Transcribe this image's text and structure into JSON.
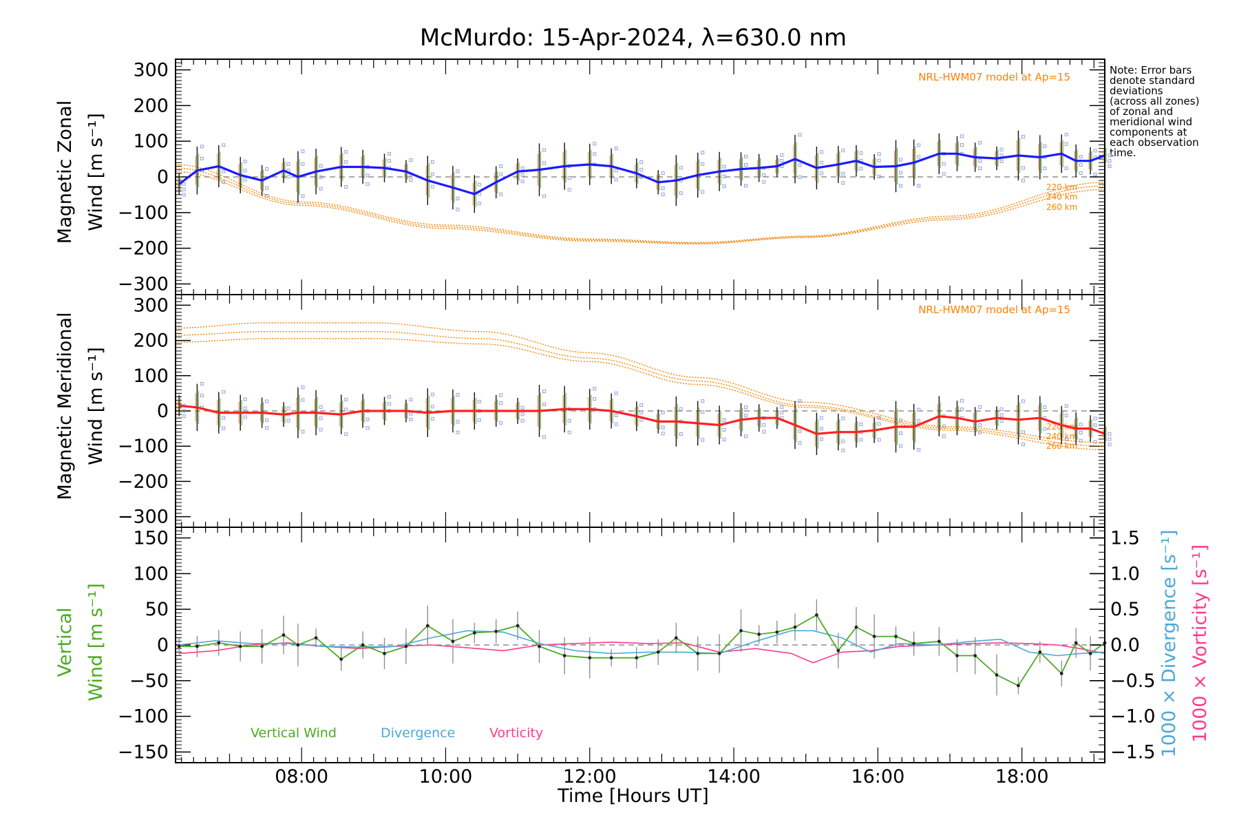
{
  "title": "McMurdo: 15-Apr-2024, λ=630.0 nm",
  "note": [
    "Note: Error bars",
    "denote standard",
    "deviations",
    "(across all zones)",
    "of zonal and",
    "meridional wind",
    "components at",
    "each observation",
    "time."
  ],
  "x_axis": {
    "label": "Time [Hours UT]",
    "range_hours": [
      6.25,
      19.15
    ],
    "ticks": [
      8,
      10,
      12,
      14,
      16,
      18
    ],
    "tick_labels": [
      "08:00",
      "10:00",
      "12:00",
      "14:00",
      "16:00",
      "18:00"
    ]
  },
  "colors": {
    "zonal": "#1a1aff",
    "meridional": "#ff2020",
    "model": "#ff8000",
    "vertical": "#4daa20",
    "divergence": "#4aa8d8",
    "vorticity": "#ff3a8a",
    "scatter": "#9a9ae0"
  },
  "chart_data": [
    {
      "type": "line",
      "panel": "zonal",
      "ylabel": [
        "Magnetic Zonal",
        "Wind [m s⁻¹]"
      ],
      "ylim": [
        -330,
        330
      ],
      "yticks": [
        300,
        200,
        100,
        0,
        -100,
        -200,
        -300
      ],
      "ytick_labels": [
        "300",
        "200",
        "100",
        "0",
        "−100",
        "−200",
        "−300"
      ],
      "model_label": "NRL-HWM07 model at Ap=15",
      "model_heights": [
        "220 km",
        "240 km",
        "260 km"
      ],
      "series": [
        {
          "x": [
            6.3,
            6.55,
            6.85,
            7.15,
            7.45,
            7.75,
            7.95,
            8.2,
            8.55,
            8.85,
            9.15,
            9.45,
            9.75,
            10.1,
            10.4,
            10.7,
            11.0,
            11.3,
            11.65,
            12.0,
            12.3,
            12.65,
            12.95,
            13.2,
            13.5,
            13.8,
            14.1,
            14.35,
            14.6,
            14.85,
            15.15,
            15.45,
            15.7,
            15.95,
            16.25,
            16.5,
            16.85,
            17.1,
            17.35,
            17.65,
            17.95,
            18.25,
            18.55,
            18.75,
            18.95,
            19.15
          ],
          "y": [
            -20,
            18,
            30,
            5,
            -10,
            18,
            0,
            15,
            28,
            28,
            25,
            15,
            -10,
            -30,
            -48,
            -15,
            15,
            20,
            30,
            35,
            30,
            10,
            -15,
            -10,
            5,
            15,
            22,
            25,
            30,
            50,
            25,
            35,
            45,
            28,
            30,
            40,
            65,
            65,
            55,
            52,
            60,
            55,
            65,
            45,
            45,
            60
          ]
        }
      ],
      "model": [
        {
          "x": [
            6.25,
            8,
            10,
            12,
            13.5,
            15,
            17,
            19.15
          ],
          "y": [
            15,
            -80,
            -145,
            -180,
            -188,
            -170,
            -120,
            -35
          ]
        },
        {
          "x": [
            6.25,
            8,
            10,
            12,
            13.5,
            15,
            17,
            19.15
          ],
          "y": [
            25,
            -75,
            -140,
            -177,
            -186,
            -168,
            -115,
            -25
          ]
        },
        {
          "x": [
            6.25,
            8,
            10,
            12,
            13.5,
            15,
            17,
            19.15
          ],
          "y": [
            35,
            -70,
            -135,
            -174,
            -184,
            -166,
            -110,
            -15
          ]
        }
      ]
    },
    {
      "type": "line",
      "panel": "meridional",
      "ylabel": [
        "Magnetic Meridional",
        "Wind [m s⁻¹]"
      ],
      "ylim": [
        -330,
        330
      ],
      "yticks": [
        300,
        200,
        100,
        0,
        -100,
        -200,
        -300
      ],
      "ytick_labels": [
        "300",
        "200",
        "100",
        "0",
        "−100",
        "−200",
        "−300"
      ],
      "model_label": "NRL-HWM07 model at Ap=15",
      "model_heights": [
        "220 km",
        "240 km",
        "260 km"
      ],
      "series": [
        {
          "x": [
            6.3,
            6.55,
            6.85,
            7.15,
            7.45,
            7.75,
            7.95,
            8.2,
            8.55,
            8.85,
            9.15,
            9.45,
            9.75,
            10.1,
            10.4,
            10.7,
            11.0,
            11.3,
            11.65,
            12.0,
            12.3,
            12.65,
            12.95,
            13.2,
            13.5,
            13.8,
            14.1,
            14.35,
            14.6,
            14.85,
            15.15,
            15.45,
            15.7,
            15.95,
            16.25,
            16.5,
            16.85,
            17.1,
            17.35,
            17.65,
            17.95,
            18.25,
            18.55,
            18.75,
            18.95,
            19.15
          ],
          "y": [
            15,
            10,
            -5,
            -5,
            -5,
            -10,
            -5,
            -5,
            -10,
            0,
            0,
            0,
            -5,
            0,
            0,
            0,
            0,
            0,
            5,
            5,
            0,
            -15,
            -30,
            -30,
            -35,
            -40,
            -25,
            -20,
            -20,
            -40,
            -65,
            -60,
            -60,
            -55,
            -45,
            -45,
            -15,
            -20,
            -30,
            -20,
            -25,
            -20,
            -40,
            -50,
            -50,
            -65
          ]
        }
      ],
      "model": [
        {
          "x": [
            6.25,
            7.5,
            9,
            10.5,
            12,
            13.5,
            15,
            17,
            19.15
          ],
          "y": [
            195,
            205,
            205,
            190,
            140,
            75,
            10,
            -55,
            -110
          ]
        },
        {
          "x": [
            6.25,
            7.5,
            9,
            10.5,
            12,
            13.5,
            15,
            17,
            19.15
          ],
          "y": [
            215,
            225,
            225,
            205,
            150,
            85,
            15,
            -50,
            -100
          ]
        },
        {
          "x": [
            6.25,
            7.5,
            9,
            10.5,
            12,
            13.5,
            15,
            17,
            19.15
          ],
          "y": [
            235,
            250,
            250,
            225,
            165,
            95,
            25,
            -45,
            -90
          ]
        }
      ]
    },
    {
      "type": "line",
      "panel": "vertical",
      "ylabel": [
        "Vertical",
        "Wind [m s⁻¹]"
      ],
      "ylim": [
        -165,
        165
      ],
      "yticks": [
        150,
        100,
        50,
        0,
        -50,
        -100,
        -150
      ],
      "ytick_labels": [
        "150",
        "100",
        "50",
        "0",
        "−50",
        "−100",
        "−150"
      ],
      "right_ylim": [
        -1.65,
        1.65
      ],
      "right_yticks": [
        1.5,
        1.0,
        0.5,
        0.0,
        -0.5,
        -1.0,
        -1.5
      ],
      "right_ytick_labels": [
        "1.5",
        "1.0",
        "0.5",
        "0.0",
        "−0.5",
        "−1.0",
        "−1.5"
      ],
      "right_ylabels": [
        "1000 × Divergence [s⁻¹]",
        "1000 × Vorticity [s⁻¹]"
      ],
      "legend": [
        "Vertical Wind",
        "Divergence",
        "Vorticity"
      ],
      "series": [
        {
          "name": "Vertical Wind",
          "x": [
            6.3,
            6.55,
            6.85,
            7.15,
            7.45,
            7.75,
            7.95,
            8.2,
            8.55,
            8.85,
            9.15,
            9.45,
            9.75,
            10.1,
            10.4,
            10.7,
            11.0,
            11.3,
            11.65,
            12.0,
            12.3,
            12.65,
            12.95,
            13.2,
            13.5,
            13.8,
            14.1,
            14.35,
            14.6,
            14.85,
            15.15,
            15.45,
            15.7,
            15.95,
            16.25,
            16.5,
            16.85,
            17.1,
            17.35,
            17.65,
            17.95,
            18.25,
            18.55,
            18.75,
            18.95,
            19.15
          ],
          "y": [
            -2,
            -2,
            3,
            -2,
            -2,
            14,
            0,
            10,
            -20,
            0,
            -12,
            -2,
            27,
            5,
            17,
            19,
            27,
            -2,
            -15,
            -18,
            -18,
            -18,
            -10,
            10,
            -12,
            -12,
            20,
            15,
            18,
            25,
            42,
            -8,
            25,
            12,
            12,
            2,
            5,
            -15,
            -15,
            -42,
            -57,
            -10,
            -40,
            3,
            -12,
            3
          ]
        },
        {
          "name": "Divergence",
          "x": [
            6.3,
            6.8,
            7.3,
            7.8,
            8.3,
            8.8,
            9.3,
            9.8,
            10.3,
            10.8,
            11.3,
            11.8,
            12.3,
            12.8,
            13.3,
            13.8,
            14.3,
            14.8,
            15.1,
            15.5,
            15.9,
            16.3,
            16.8,
            17.3,
            17.7,
            18.1,
            18.5,
            18.8,
            19.15
          ],
          "y": [
            0.0,
            0.06,
            0.02,
            0.02,
            -0.02,
            -0.03,
            -0.02,
            0.1,
            0.2,
            0.18,
            0.02,
            -0.08,
            -0.12,
            -0.1,
            -0.1,
            -0.12,
            0.05,
            0.2,
            0.2,
            0.1,
            -0.1,
            0.02,
            0.0,
            0.05,
            0.08,
            -0.1,
            -0.15,
            -0.12,
            -0.1
          ]
        },
        {
          "name": "Vorticity",
          "x": [
            6.3,
            6.8,
            7.3,
            7.8,
            8.3,
            8.8,
            9.3,
            9.8,
            10.3,
            10.8,
            11.3,
            11.8,
            12.3,
            12.8,
            13.3,
            13.8,
            14.3,
            14.8,
            15.1,
            15.5,
            15.9,
            16.3,
            16.8,
            17.3,
            17.7,
            18.1,
            18.5,
            18.8,
            19.15
          ],
          "y": [
            -0.12,
            -0.08,
            0.0,
            0.03,
            -0.02,
            -0.05,
            -0.02,
            0.0,
            -0.04,
            -0.08,
            0.0,
            0.02,
            0.04,
            0.02,
            0.03,
            -0.1,
            -0.05,
            -0.12,
            -0.25,
            -0.1,
            -0.08,
            -0.02,
            0.0,
            0.02,
            0.03,
            0.02,
            0.0,
            -0.05,
            -0.12
          ]
        }
      ]
    }
  ]
}
